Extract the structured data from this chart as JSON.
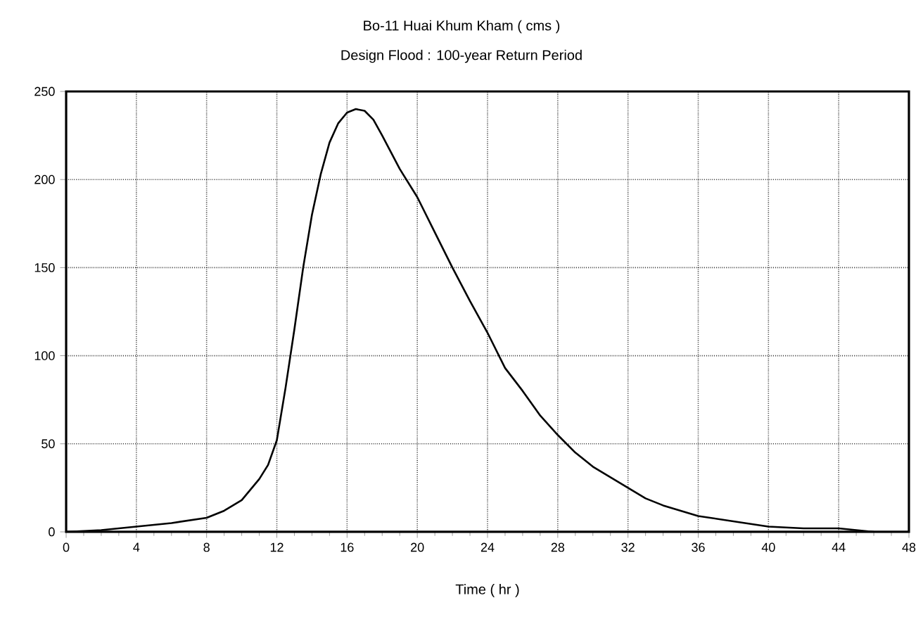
{
  "chart_data": {
    "type": "line",
    "title": "Bo-11 Huai Khum Kham      ( cms )",
    "subtitle": "Design Flood : 100-year Return Period",
    "xlabel": "Time ( hr )",
    "x": [
      0,
      2,
      4,
      6,
      8,
      9,
      10,
      11,
      11.5,
      12,
      12.5,
      13,
      13.5,
      14,
      14.5,
      15,
      15.5,
      16,
      16.5,
      17,
      17.5,
      18,
      19,
      20,
      21,
      22,
      23,
      24,
      25,
      26,
      27,
      28,
      29,
      30,
      31,
      32,
      33,
      34,
      36,
      38,
      40,
      42,
      44,
      45,
      46
    ],
    "series": [
      {
        "color": "#000000",
        "values": [
          0,
          1,
          3,
          5,
          8,
          12,
          18,
          30,
          38,
          52,
          82,
          115,
          150,
          180,
          203,
          221,
          232,
          238,
          240,
          239,
          234,
          225,
          206,
          190,
          170,
          150,
          131,
          113,
          93,
          80,
          66,
          55,
          45,
          37,
          31,
          25,
          19,
          15,
          9,
          6,
          3,
          2,
          2,
          1,
          0
        ]
      }
    ],
    "xlim": [
      0,
      48
    ],
    "ylim": [
      0,
      250
    ],
    "xticks": [
      0,
      4,
      8,
      12,
      16,
      20,
      24,
      28,
      32,
      36,
      40,
      44,
      48
    ],
    "yticks": [
      0,
      50,
      100,
      150,
      200,
      250
    ],
    "grid": true,
    "marker": "none",
    "line_style": "solid"
  }
}
